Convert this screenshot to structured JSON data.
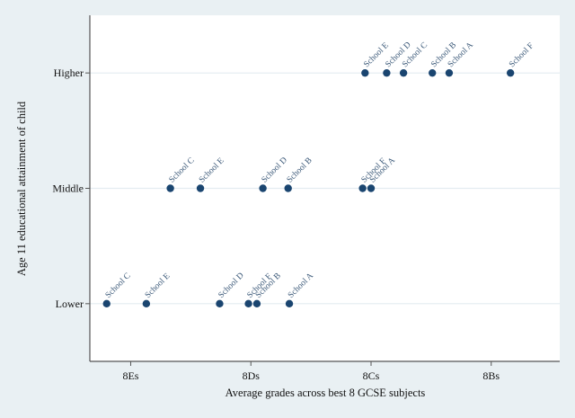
{
  "chart_data": {
    "type": "scatter",
    "title": "",
    "xlabel": "Average grades across best 8 GCSE subjects",
    "ylabel": "Age 11 educational attainment of child",
    "x_ticks": [
      {
        "value": 1,
        "label": "8Es"
      },
      {
        "value": 2,
        "label": "8Ds"
      },
      {
        "value": 3,
        "label": "8Cs"
      },
      {
        "value": 4,
        "label": "8Bs"
      }
    ],
    "y_categories": [
      "Lower",
      "Middle",
      "Higher"
    ],
    "xlim": [
      0.66,
      4.57
    ],
    "ylim": [
      -0.5,
      2.5
    ],
    "grid": true,
    "marker_color": "#1a4570",
    "series": [
      {
        "name": "Higher",
        "points": [
          {
            "label": "School E",
            "x": 2.95
          },
          {
            "label": "School D",
            "x": 3.13
          },
          {
            "label": "School C",
            "x": 3.27
          },
          {
            "label": "School B",
            "x": 3.51
          },
          {
            "label": "School A",
            "x": 3.65
          },
          {
            "label": "School F",
            "x": 4.16
          }
        ]
      },
      {
        "name": "Middle",
        "points": [
          {
            "label": "School C",
            "x": 1.33
          },
          {
            "label": "School E",
            "x": 1.58
          },
          {
            "label": "School D",
            "x": 2.1
          },
          {
            "label": "School B",
            "x": 2.31
          },
          {
            "label": "School F",
            "x": 2.93
          },
          {
            "label": "School A",
            "x": 3.0
          }
        ]
      },
      {
        "name": "Lower",
        "points": [
          {
            "label": "School C",
            "x": 0.8
          },
          {
            "label": "School E",
            "x": 1.13
          },
          {
            "label": "School D",
            "x": 1.74
          },
          {
            "label": "School F",
            "x": 1.98
          },
          {
            "label": "School B",
            "x": 2.05
          },
          {
            "label": "School A",
            "x": 2.32
          }
        ]
      }
    ]
  }
}
